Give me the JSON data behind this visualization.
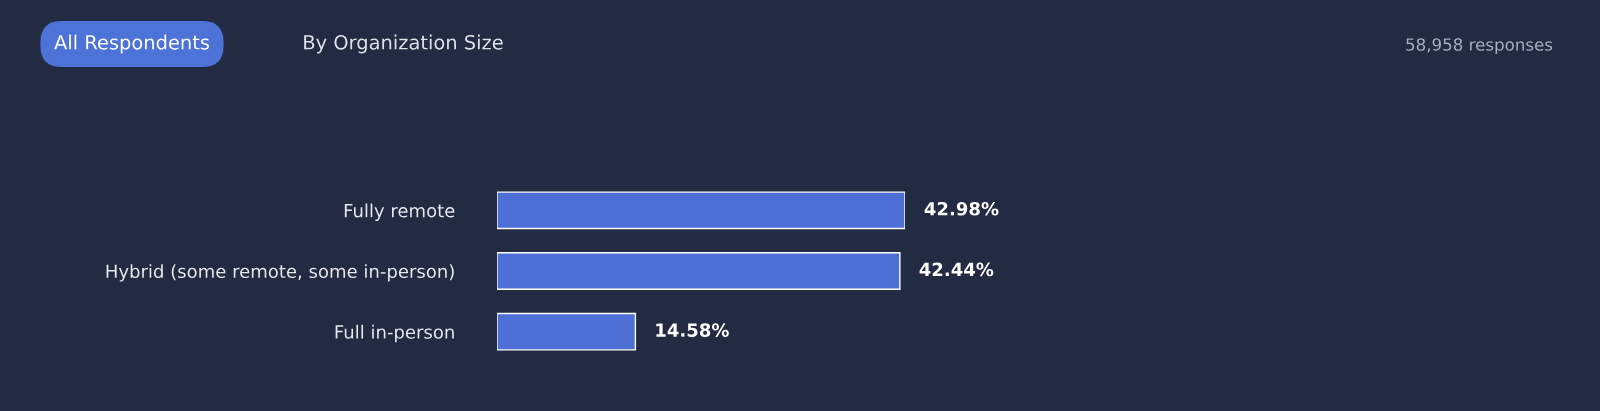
{
  "chart_data": {
    "type": "bar",
    "orientation": "horizontal",
    "categories": [
      "Fully remote",
      "Hybrid (some remote, some in-person)",
      "Full in-person"
    ],
    "values": [
      42.98,
      42.44,
      14.58
    ],
    "value_labels": [
      "42.98%",
      "42.44%",
      "14.58%"
    ],
    "color": "#4d6fd6",
    "annotations": [
      "All Respondents",
      "By Organization Size",
      "58,958 responses"
    ]
  }
}
